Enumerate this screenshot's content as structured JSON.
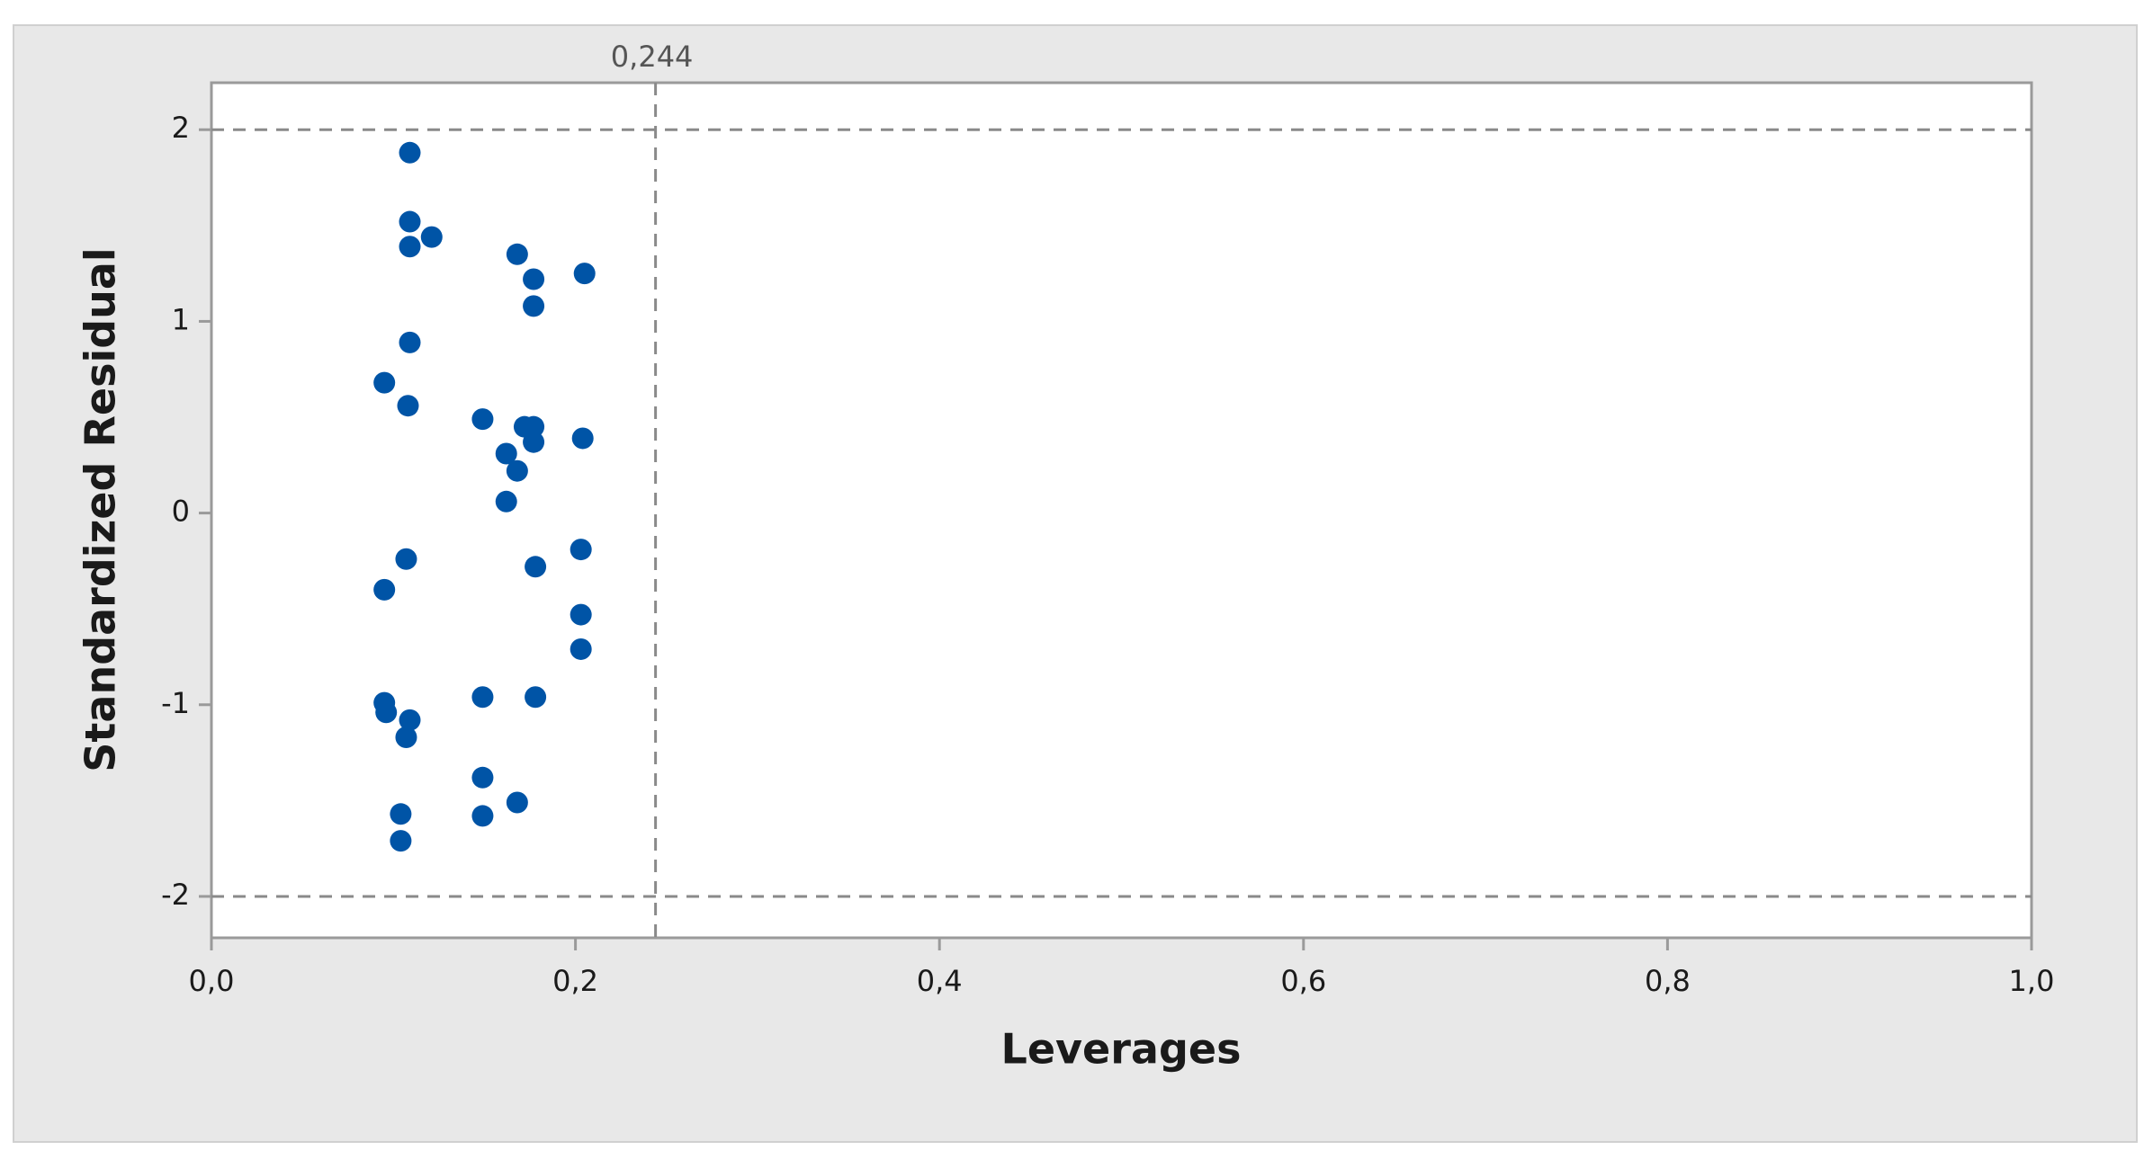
{
  "chart_data": {
    "type": "scatter",
    "x_label": "Leverages",
    "y_label": "Standardized Residual",
    "color": "#0054a6",
    "x": [
      0.109,
      0.109,
      0.121,
      0.109,
      0.168,
      0.177,
      0.205,
      0.177,
      0.109,
      0.095,
      0.108,
      0.149,
      0.172,
      0.177,
      0.204,
      0.177,
      0.162,
      0.168,
      0.162,
      0.107,
      0.095,
      0.178,
      0.203,
      0.203,
      0.203,
      0.149,
      0.178,
      0.095,
      0.096,
      0.109,
      0.107,
      0.149,
      0.168,
      0.104,
      0.149,
      0.104
    ],
    "values": [
      1.88,
      1.52,
      1.44,
      1.39,
      1.35,
      1.22,
      1.25,
      1.08,
      0.89,
      0.68,
      0.56,
      0.49,
      0.45,
      0.45,
      0.39,
      0.37,
      0.31,
      0.22,
      0.06,
      -0.24,
      -0.4,
      -0.28,
      -0.19,
      -0.53,
      -0.71,
      -0.96,
      -0.96,
      -0.99,
      -1.04,
      -1.08,
      -1.17,
      -1.38,
      -1.51,
      -1.57,
      -1.58,
      -1.71
    ],
    "xlim": [
      0,
      1
    ],
    "ylim": [
      -2.216,
      2.245
    ],
    "xticks": [
      {
        "value": 0,
        "label": "0,0"
      },
      {
        "value": 0.2,
        "label": "0,2"
      },
      {
        "value": 0.4,
        "label": "0,4"
      },
      {
        "value": 0.6,
        "label": "0,6"
      },
      {
        "value": 0.8,
        "label": "0,8"
      },
      {
        "value": 1,
        "label": "1,0"
      }
    ],
    "yticks": [
      -2,
      -1,
      0,
      1,
      2
    ],
    "reference_lines": {
      "y": [
        2,
        -2
      ],
      "x": [
        {
          "value": 0.244,
          "label": "0,244"
        }
      ]
    }
  }
}
